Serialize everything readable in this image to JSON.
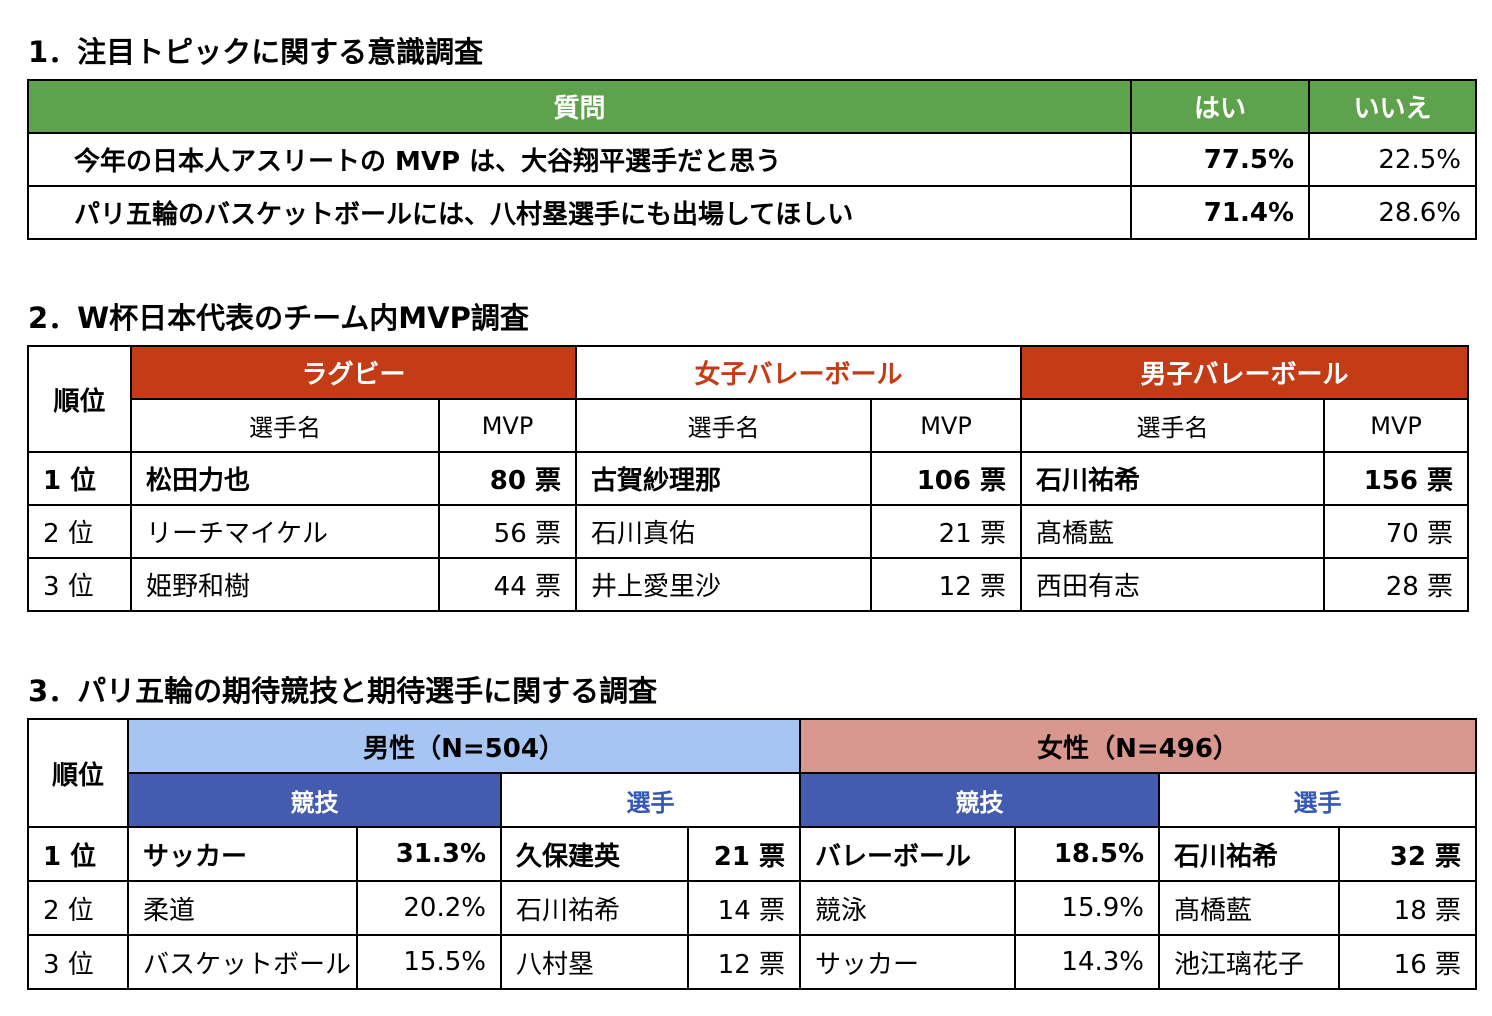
{
  "s1": {
    "title": "1．注目トピックに関する意識調査",
    "header": {
      "question": "質問",
      "yes": "はい",
      "no": "いいえ"
    },
    "rows": [
      {
        "question": "今年の日本人アスリートの MVP は、大谷翔平選手だと思う",
        "yes": "77.5%",
        "no": "22.5%"
      },
      {
        "question": "パリ五輪のバスケットボールには、八村塁選手にも出場してほしい",
        "yes": "71.4%",
        "no": "28.6%"
      }
    ],
    "colors": {
      "header_bg": "#5fa24e"
    }
  },
  "s2": {
    "title": "2．W杯日本代表のチーム内MVP調査",
    "rank_header": "順位",
    "sports": [
      {
        "name": "ラグビー",
        "player_col": "選手名",
        "mvp_col": "MVP"
      },
      {
        "name": "女子バレーボール",
        "player_col": "選手名",
        "mvp_col": "MVP"
      },
      {
        "name": "男子バレーボール",
        "player_col": "選手名",
        "mvp_col": "MVP"
      }
    ],
    "rows": [
      {
        "rank": "1 位",
        "cells": [
          [
            "松田力也",
            "80 票"
          ],
          [
            "古賀紗理那",
            "106 票"
          ],
          [
            "石川祐希",
            "156 票"
          ]
        ]
      },
      {
        "rank": "2 位",
        "cells": [
          [
            "リーチマイケル",
            "56 票"
          ],
          [
            "石川真佑",
            "21 票"
          ],
          [
            "髙橋藍",
            "70 票"
          ]
        ]
      },
      {
        "rank": "3 位",
        "cells": [
          [
            "姫野和樹",
            "44 票"
          ],
          [
            "井上愛里沙",
            "12 票"
          ],
          [
            "西田有志",
            "28 票"
          ]
        ]
      }
    ],
    "colors": {
      "accent": "#c43c16"
    }
  },
  "s3": {
    "title": "3．パリ五輪の期待競技と期待選手に関する調査",
    "rank_header": "順位",
    "male_header": "男性（N=504）",
    "female_header": "女性（N=496）",
    "sub": {
      "event": "競技",
      "player": "選手"
    },
    "rows": [
      {
        "rank": "1 位",
        "m_event": "サッカー",
        "m_event_pct": "31.3%",
        "m_player": "久保建英",
        "m_player_votes": "21 票",
        "f_event": "バレーボール",
        "f_event_pct": "18.5%",
        "f_player": "石川祐希",
        "f_player_votes": "32 票"
      },
      {
        "rank": "2 位",
        "m_event": "柔道",
        "m_event_pct": "20.2%",
        "m_player": "石川祐希",
        "m_player_votes": "14 票",
        "f_event": "競泳",
        "f_event_pct": "15.9%",
        "f_player": "髙橋藍",
        "f_player_votes": "18 票"
      },
      {
        "rank": "3 位",
        "m_event": "バスケットボール",
        "m_event_pct": "15.5%",
        "m_player": "八村塁",
        "m_player_votes": "12 票",
        "f_event": "サッカー",
        "f_event_pct": "14.3%",
        "f_player": "池江璃花子",
        "f_player_votes": "16 票"
      }
    ],
    "colors": {
      "male_bg": "#a6c5f3",
      "female_bg": "#d8988f",
      "event_bg": "#445cb0",
      "player_text": "#3558b5"
    }
  }
}
